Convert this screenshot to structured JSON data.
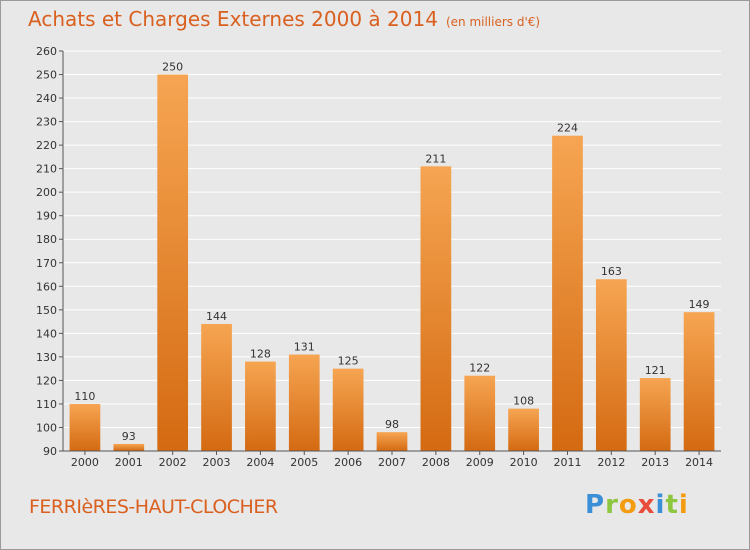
{
  "title": "Achats et Charges Externes 2000 à 2014",
  "unit_note": "(en milliers d'€)",
  "town": "FERRIèRES-HAUT-CLOCHER",
  "logo": {
    "letters": [
      "P",
      "r",
      "o",
      "x",
      "i",
      "t",
      "i"
    ],
    "colors": [
      "#3b8fd6",
      "#8dc63f",
      "#f39c12",
      "#e74c3c",
      "#3b8fd6",
      "#8dc63f",
      "#f39c12"
    ]
  },
  "colors": {
    "bar_top": "#f6a552",
    "bar_bottom": "#d46a12",
    "title": "#d9601f",
    "grid": "#ffffff",
    "background": "#e8e8e8"
  },
  "chart_data": {
    "type": "bar",
    "title": "Achats et Charges Externes 2000 à 2014",
    "xlabel": "",
    "ylabel": "",
    "ylim": [
      90,
      260
    ],
    "ytick_step": 10,
    "grid": true,
    "categories": [
      "2000",
      "2001",
      "2002",
      "2003",
      "2004",
      "2005",
      "2006",
      "2007",
      "2008",
      "2009",
      "2010",
      "2011",
      "2012",
      "2013",
      "2014"
    ],
    "values": [
      110,
      93,
      250,
      144,
      128,
      131,
      125,
      98,
      211,
      122,
      108,
      224,
      163,
      121,
      149
    ]
  }
}
